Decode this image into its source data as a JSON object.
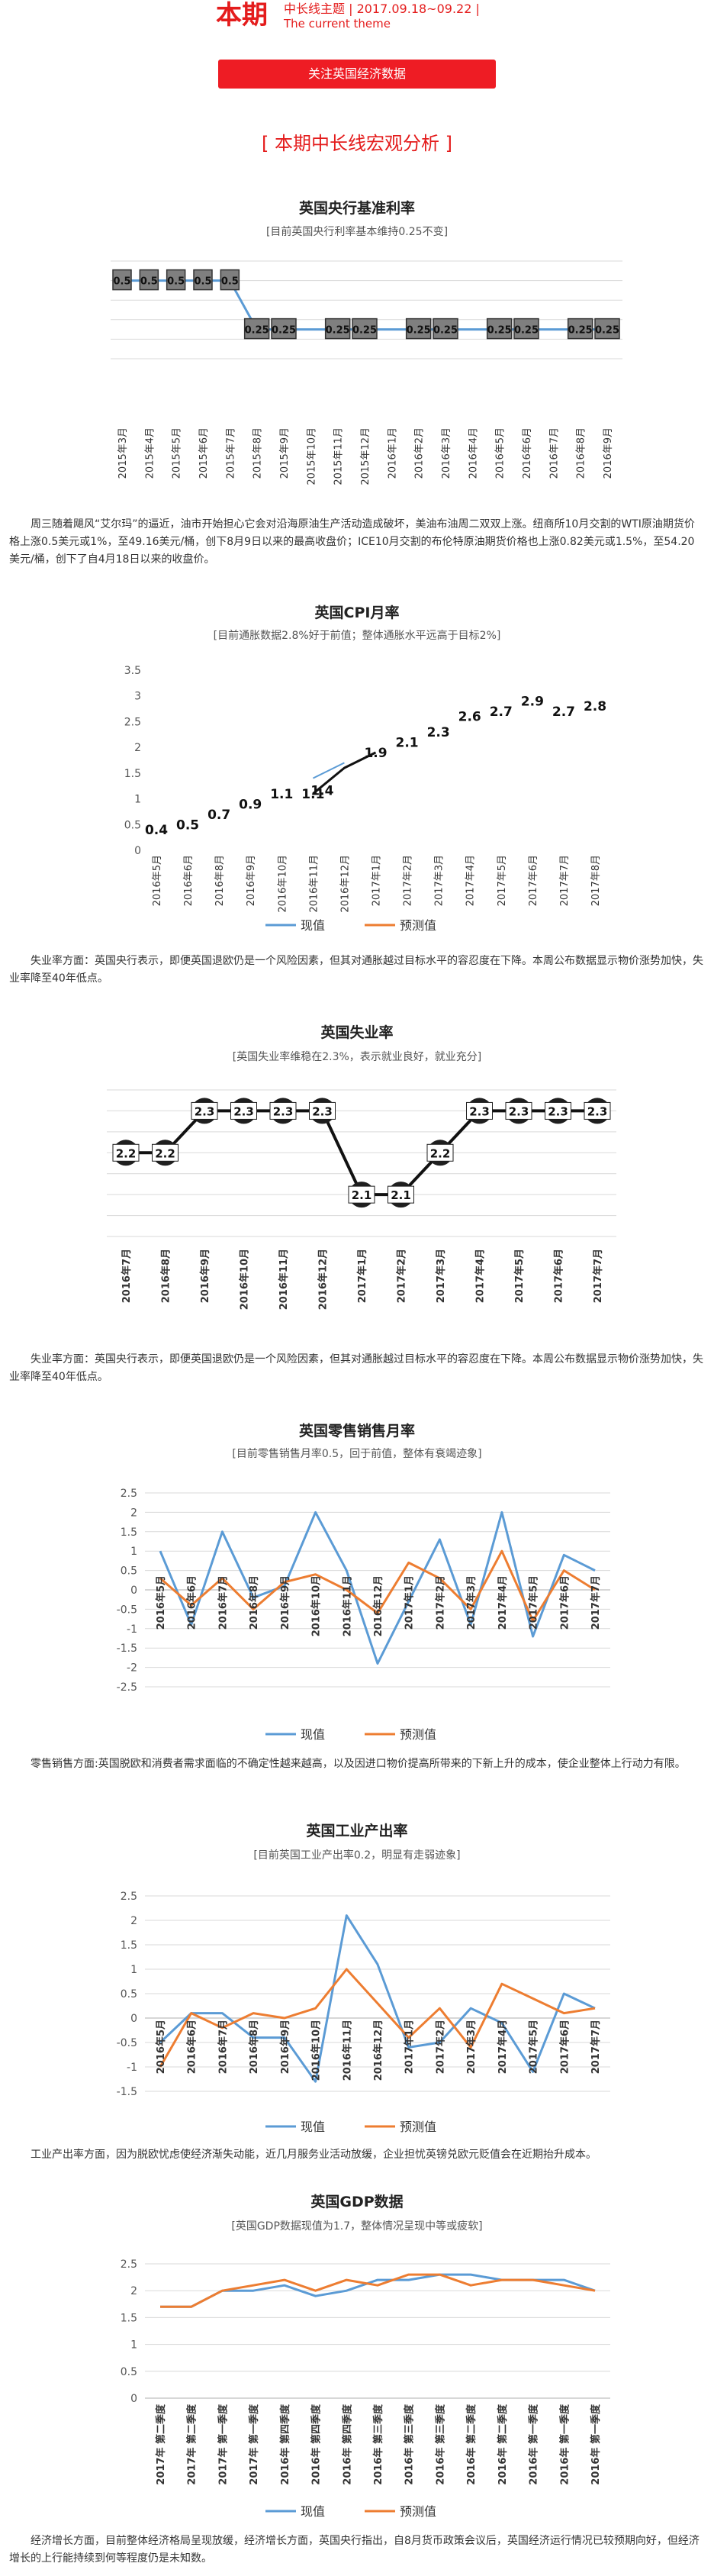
{
  "header": {
    "big": "本期",
    "line1": "中长线主题 | 2017.09.18~09.22 |",
    "line2": "The current theme"
  },
  "follow_button": "关注英国经济数据",
  "section_title": "[ 本期中长线宏观分析 ]",
  "colors": {
    "accent": "#e41c1c",
    "blue": "#5b9bd5",
    "orange": "#ed7d31"
  },
  "charts": {
    "rate": {
      "title": "英国央行基准利率",
      "subtitle": "[目前英国央行利率基本维持0.25不变]"
    },
    "cpi": {
      "title": "英国CPI月率",
      "subtitle": "[目前通胀数据2.8%好于前值；整体通胀水平远高于目标2%]"
    },
    "unemp": {
      "title": "英国失业率",
      "subtitle": "[英国失业率维稳在2.3%，表示就业良好，就业充分]"
    },
    "retail": {
      "title": "英国零售销售月率",
      "subtitle": "[目前零售销售月率0.5，回于前值，整体有衰竭迹象]"
    },
    "ind": {
      "title": "英国工业产出率",
      "subtitle": "[目前英国工业产出率0.2，明显有走弱迹象]"
    },
    "gdp": {
      "title": "英国GDP数据",
      "subtitle": "[英国GDP数据现值为1.7，整体情况呈现中等或疲软]"
    }
  },
  "paragraphs": {
    "p1": "周三随着飓风“艾尔玛”的逼近，油市开始担心它会对沿海原油生产活动造成破坏，美油布油周二双双上涨。纽商所10月交割的WTI原油期货价格上涨0.5美元或1%，至49.16美元/桶，创下8月9日以来的最高收盘价；ICE10月交割的布伦特原油期货价格也上涨0.82美元或1.5%，至54.20美元/桶，创下了自4月18日以来的收盘价。",
    "p2": "失业率方面：英国央行表示，即便英国退欧仍是一个风险因素，但其对通胀越过目标水平的容忍度在下降。本周公布数据显示物价涨势加快，失业率降至40年低点。",
    "p3": "失业率方面：英国央行表示，即便英国退欧仍是一个风险因素，但其对通胀越过目标水平的容忍度在下降。本周公布数据显示物价涨势加快，失业率降至40年低点。",
    "p4": "零售销售方面:英国脱欧和消费者需求面临的不确定性越来越高，以及因进口物价提高所带来的下新上升的成本，使企业整体上行动力有限。",
    "p5": "工业产出率方面，因为脱欧忧虑使经济渐失动能，近几月服务业活动放缓，企业担忧英镑兑欧元贬值会在近期抬升成本。",
    "p6": "经济增长方面，目前整体经济格局呈现放缓，经济增长方面，英国央行指出，自8月货币政策会议后，英国经济运行情况已较预期向好，但经济增长的上行能持续到何等程度仍是未知数。"
  },
  "chart_data": [
    {
      "id": "rate",
      "type": "line",
      "categories": [
        "2015年3月",
        "2015年4月",
        "2015年5月",
        "2015年6月",
        "2015年7月",
        "2015年8月",
        "2015年9月",
        "2015年10月",
        "2015年11月",
        "2015年12月",
        "2016年1月",
        "2016年2月",
        "2016年3月",
        "2016年4月",
        "2016年5月",
        "2016年6月",
        "2016年7月",
        "2016年8月",
        "2016年9月"
      ],
      "series": [
        {
          "name": "",
          "values": [
            0.5,
            0.5,
            0.5,
            0.5,
            0.5,
            0.25,
            0.25,
            0.25,
            0.25,
            0.25,
            0.25,
            0.25,
            0.25,
            0.25,
            0.25,
            0.25,
            0.25,
            0.25,
            0.25
          ],
          "labels": [
            "0.5",
            "0.5",
            "0.5",
            "0.5",
            "0.5",
            "0.25",
            "0.25",
            "",
            "0.25",
            "0.25",
            "",
            "0.25",
            "0.25",
            "",
            "0.25",
            "0.25",
            "",
            "0.25",
            "0.25"
          ]
        }
      ],
      "ylim": [
        0.1,
        0.6
      ],
      "grid": true
    },
    {
      "id": "cpi",
      "type": "line",
      "categories": [
        "2016年5月",
        "2016年6月",
        "2016年8月",
        "2016年9月",
        "2016年10月",
        "2016年11月",
        "2016年12月",
        "2017年1月",
        "2017年2月",
        "2017年3月",
        "2017年4月",
        "2017年5月",
        "2017年6月",
        "2017年7月",
        "2017年8月"
      ],
      "yticks": [
        "0",
        "0.5",
        "1",
        "1.5",
        "2",
        "2.5",
        "3",
        "3.5"
      ],
      "ylim": [
        0,
        3.5
      ],
      "legend": [
        "现值",
        "预测值"
      ],
      "legend_position": "bottom",
      "series": [
        {
          "name": "现值",
          "values": [
            0.4,
            0.5,
            0.7,
            0.9,
            1.1,
            1.1,
            1.6,
            1.9,
            2.1,
            2.3,
            2.6,
            2.7,
            2.9,
            2.7,
            2.8
          ],
          "labels": [
            "0.4",
            "0.5",
            "0.7",
            "0.9",
            "1.1",
            "1.1",
            "",
            "1.9",
            "2.1",
            "2.3",
            "2.6",
            "2.7",
            "2.9",
            "2.7",
            "2.8"
          ]
        },
        {
          "name": "预测值",
          "values": [
            null,
            null,
            null,
            null,
            null,
            1.4,
            1.7,
            null,
            null,
            null,
            null,
            null,
            null,
            null,
            null
          ],
          "labels": [
            "",
            "",
            "",
            "",
            "",
            "1.4",
            "",
            "",
            "",
            "",
            "",
            "",
            "",
            "",
            ""
          ]
        }
      ]
    },
    {
      "id": "unemp",
      "type": "line",
      "categories": [
        "2016年7月",
        "2016年8月",
        "2016年9月",
        "2016年10月",
        "2016年11月",
        "2016年12月",
        "2017年1月",
        "2017年2月",
        "2017年3月",
        "2017年4月",
        "2017年5月",
        "2017年6月",
        "2017年7月"
      ],
      "series": [
        {
          "name": "",
          "values": [
            2.2,
            2.2,
            2.3,
            2.3,
            2.3,
            2.3,
            2.1,
            2.1,
            2.2,
            2.3,
            2.3,
            2.3,
            2.3
          ],
          "labels": [
            "2.2",
            "2.2",
            "2.3",
            "2.3",
            "2.3",
            "2.3",
            "2.1",
            "2.1",
            "2.2",
            "2.3",
            "2.3",
            "2.3",
            "2.3"
          ]
        }
      ],
      "ylim": [
        2.0,
        2.35
      ],
      "grid": true
    },
    {
      "id": "retail",
      "type": "line",
      "categories": [
        "2016年5月",
        "2016年6月",
        "2016年7月",
        "2016年8月",
        "2016年9月",
        "2016年10月",
        "2016年11月",
        "2016年12月",
        "2017年1月",
        "2017年2月",
        "2017年3月",
        "2017年4月",
        "2017年5月",
        "2017年6月",
        "2017年7月"
      ],
      "yticks": [
        "-2.5",
        "-2",
        "-1.5",
        "-1",
        "-0.5",
        "0",
        "0.5",
        "1",
        "1.5",
        "2",
        "2.5"
      ],
      "ylim": [
        -2.5,
        2.5
      ],
      "legend": [
        "现值",
        "预测值"
      ],
      "legend_position": "bottom",
      "series": [
        {
          "name": "现值",
          "values": [
            1.0,
            -0.9,
            1.5,
            -0.2,
            0.1,
            2.0,
            0.5,
            -1.9,
            -0.3,
            1.3,
            -0.9,
            2.0,
            -1.2,
            0.9,
            0.5
          ]
        },
        {
          "name": "预测值",
          "values": [
            0.3,
            -0.4,
            0.3,
            -0.5,
            0.2,
            0.4,
            0.0,
            -0.6,
            0.7,
            0.3,
            -0.5,
            1.0,
            -0.8,
            0.5,
            0.0
          ]
        }
      ]
    },
    {
      "id": "ind",
      "type": "line",
      "categories": [
        "2016年5月",
        "2016年6月",
        "2016年7月",
        "2016年8月",
        "2016年9月",
        "2016年10月",
        "2016年11月",
        "2016年12月",
        "2017年1月",
        "2017年2月",
        "2017年3月",
        "2017年4月",
        "2017年5月",
        "2017年6月",
        "2017年7月"
      ],
      "yticks": [
        "-1.5",
        "-1",
        "-0.5",
        "0",
        "0.5",
        "1",
        "1.5",
        "2",
        "2.5"
      ],
      "ylim": [
        -1.5,
        2.5
      ],
      "legend": [
        "现值",
        "预测值"
      ],
      "legend_position": "bottom",
      "series": [
        {
          "name": "现值",
          "values": [
            -0.5,
            0.1,
            0.1,
            -0.4,
            -0.4,
            -1.3,
            2.1,
            1.1,
            -0.6,
            -0.5,
            0.2,
            -0.1,
            -1.1,
            0.5,
            0.2
          ]
        },
        {
          "name": "预测值",
          "values": [
            -1.0,
            0.1,
            -0.2,
            0.1,
            0.0,
            0.2,
            1.0,
            0.3,
            -0.4,
            0.2,
            -0.6,
            0.7,
            0.4,
            0.1,
            0.2
          ]
        }
      ]
    },
    {
      "id": "gdp",
      "type": "line",
      "categories": [
        "2017年 第二季度",
        "2017年 第二季度",
        "2017年 第一季度",
        "2017年 第一季度",
        "2016年 第四季度",
        "2016年 第四季度",
        "2016年 第四季度",
        "2016年 第三季度",
        "2016年 第三季度",
        "2016年 第三季度",
        "2016年 第二季度",
        "2016年 第二季度",
        "2016年 第一季度",
        "2016年 第一季度",
        "2016年 第一季度"
      ],
      "yticks": [
        "0",
        "0.5",
        "1",
        "1.5",
        "2",
        "2.5"
      ],
      "ylim": [
        0,
        2.5
      ],
      "legend": [
        "现值",
        "预测值"
      ],
      "legend_position": "bottom",
      "series": [
        {
          "name": "现值",
          "values": [
            1.7,
            1.7,
            2.0,
            2.0,
            2.1,
            1.9,
            2.0,
            2.2,
            2.2,
            2.3,
            2.3,
            2.2,
            2.2,
            2.2,
            2.0
          ]
        },
        {
          "name": "预测值",
          "values": [
            1.7,
            1.7,
            2.0,
            2.1,
            2.2,
            2.0,
            2.2,
            2.1,
            2.3,
            2.3,
            2.1,
            2.2,
            2.2,
            2.1,
            2.0
          ]
        }
      ]
    }
  ]
}
